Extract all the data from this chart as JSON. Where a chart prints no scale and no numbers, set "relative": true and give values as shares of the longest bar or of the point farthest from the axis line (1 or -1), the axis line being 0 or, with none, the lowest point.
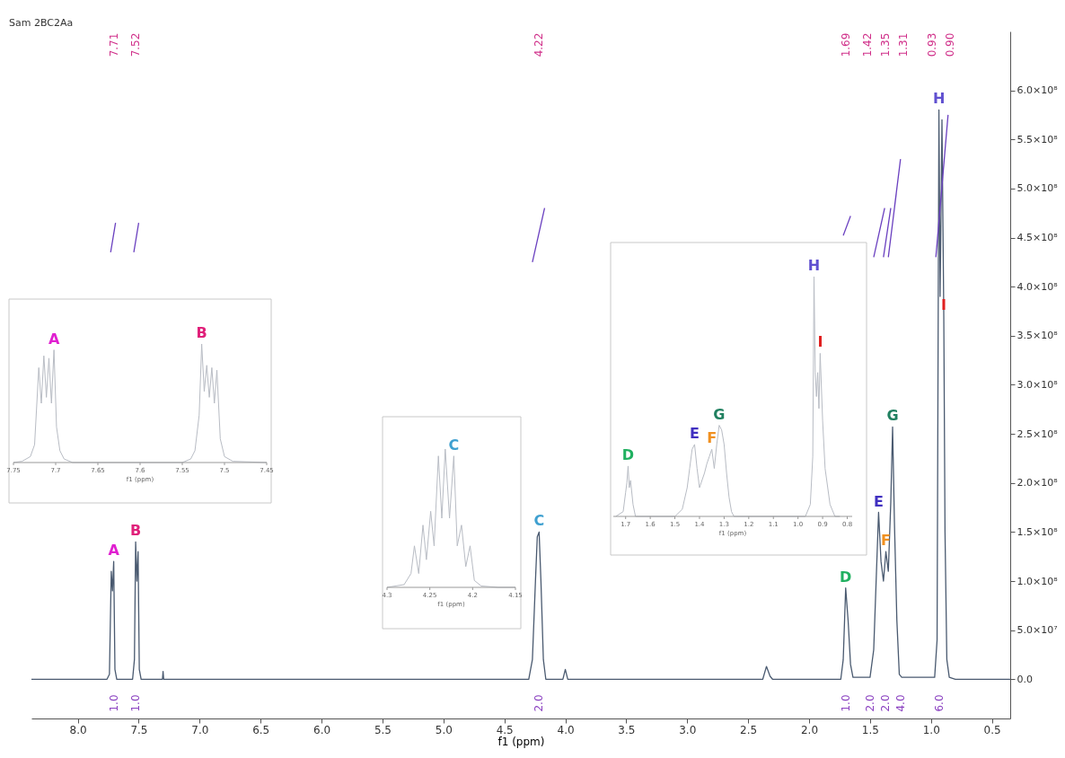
{
  "chart_data": [
    {
      "type": "line",
      "title": "Sam 2BC2Aa",
      "xlabel": "f1 (ppm)",
      "xlim": [
        8.38,
        0.35
      ],
      "xticks": [
        {
          "value": 8,
          "label": "8.0"
        },
        7.5,
        {
          "value": 7,
          "label": "7.0"
        },
        6.5,
        {
          "value": 6,
          "label": "6.0"
        },
        5.5,
        {
          "value": 5,
          "label": "5.0"
        },
        4.5,
        {
          "value": 4,
          "label": "4.0"
        },
        3.5,
        {
          "value": 3,
          "label": "3.0"
        },
        2.5,
        {
          "value": 2,
          "label": "2.0"
        },
        1.5,
        {
          "value": 1,
          "label": "1.0"
        },
        0.5
      ],
      "ylim": [
        -40000000,
        660000000
      ],
      "yticks": [
        {
          "value": 0,
          "label": "0.0"
        },
        {
          "value": 50000000,
          "label": "5.0×10⁷"
        },
        {
          "value": 100000000,
          "label": "1.0×10⁸"
        },
        {
          "value": 150000000,
          "label": "1.5×10⁸"
        },
        {
          "value": 200000000,
          "label": "2.0×10⁸"
        },
        {
          "value": 250000000,
          "label": "2.5×10⁸"
        },
        {
          "value": 300000000,
          "label": "3.0×10⁸"
        },
        {
          "value": 350000000,
          "label": "3.5×10⁸"
        },
        {
          "value": 400000000,
          "label": "4.0×10⁸"
        },
        {
          "value": 450000000,
          "label": "4.5×10⁸"
        },
        {
          "value": 500000000,
          "label": "5.0×10⁸"
        },
        {
          "value": 550000000,
          "label": "5.5×10⁸"
        },
        {
          "value": 600000000,
          "label": "6.0×10⁸"
        }
      ],
      "grid": false,
      "marker": "none",
      "line_style": "solid",
      "series": [
        {
          "color": "#4a5a70",
          "x": [
            8.38,
            7.76,
            7.74,
            7.725,
            7.715,
            7.705,
            7.695,
            7.68,
            7.55,
            7.535,
            7.525,
            7.515,
            7.505,
            7.495,
            7.48,
            7.305,
            7.3,
            7.295,
            4.3,
            4.27,
            4.245,
            4.23,
            4.215,
            4.2,
            4.18,
            4.16,
            4.02,
            4.0,
            3.98,
            2.38,
            2.35,
            2.32,
            2.3,
            1.74,
            1.72,
            1.7,
            1.68,
            1.66,
            1.64,
            1.5,
            1.47,
            1.45,
            1.43,
            1.41,
            1.39,
            1.37,
            1.35,
            1.33,
            1.315,
            1.3,
            1.28,
            1.26,
            1.24,
            0.97,
            0.95,
            0.935,
            0.925,
            0.91,
            0.895,
            0.885,
            0.87,
            0.85,
            0.8,
            0.35
          ],
          "values": [
            0,
            0,
            5000000,
            110000000,
            90000000,
            120000000,
            10000000,
            0,
            0,
            20000000,
            140000000,
            100000000,
            130000000,
            10000000,
            0,
            0,
            8000000,
            0,
            0,
            20000000,
            100000000,
            145000000,
            150000000,
            100000000,
            20000000,
            0,
            0,
            10000000,
            0,
            0,
            13000000,
            3000000,
            0,
            0,
            20000000,
            93000000,
            60000000,
            15000000,
            2000000,
            2000000,
            30000000,
            100000000,
            170000000,
            120000000,
            100000000,
            130000000,
            110000000,
            180000000,
            257000000,
            160000000,
            60000000,
            5000000,
            2000000,
            2000000,
            40000000,
            580000000,
            390000000,
            570000000,
            370000000,
            150000000,
            20000000,
            2000000,
            0,
            0
          ]
        },
        {
          "color": "#6a40c0",
          "x": [
            7.73,
            7.69
          ],
          "values": [
            435000000,
            465000000
          ]
        },
        {
          "color": "#6a40c0",
          "x": [
            7.54,
            7.5
          ],
          "values": [
            435000000,
            465000000
          ]
        },
        {
          "color": "#6a40c0",
          "x": [
            4.27,
            4.17
          ],
          "values": [
            425000000,
            480000000
          ]
        },
        {
          "color": "#6a40c0",
          "x": [
            1.72,
            1.66
          ],
          "values": [
            452000000,
            472000000
          ]
        },
        {
          "color": "#6a40c0",
          "x": [
            1.47,
            1.38
          ],
          "values": [
            430000000,
            480000000
          ]
        },
        {
          "color": "#6a40c0",
          "x": [
            1.39,
            1.33
          ],
          "values": [
            430000000,
            480000000
          ]
        },
        {
          "color": "#6a40c0",
          "x": [
            1.35,
            1.25
          ],
          "values": [
            430000000,
            530000000
          ]
        },
        {
          "color": "#6a40c0",
          "x": [
            0.96,
            0.86
          ],
          "values": [
            430000000,
            575000000
          ]
        }
      ],
      "annotations": [
        "7.71",
        "7.52",
        "4.22",
        "1.69",
        "1.42",
        "1.35",
        "1.31",
        "0.93",
        "0.90",
        {
          "text": "A",
          "x": 7.705,
          "y": 120000000
        },
        {
          "text": "B",
          "x": 7.525,
          "y": 140000000
        },
        {
          "text": "C",
          "x": 4.215,
          "y": 150000000
        },
        {
          "text": "D",
          "x": 1.7,
          "y": 93000000
        },
        {
          "text": "E",
          "x": 1.43,
          "y": 170000000
        },
        {
          "text": "F",
          "x": 1.37,
          "y": 130000000
        },
        {
          "text": "G",
          "x": 1.315,
          "y": 257000000
        },
        {
          "text": "H",
          "x": 0.935,
          "y": 580000000
        },
        {
          "text": "I",
          "x": 0.895,
          "y": 370000000
        },
        "1.0",
        "1.0",
        "2.0",
        "1.0",
        "2.0",
        "2.0",
        "4.0",
        "6.0"
      ]
    },
    {
      "type": "line",
      "relative": true,
      "tick_labels": "x",
      "xlabel": "f1 (ppm)",
      "xlim": [
        7.75,
        7.45
      ],
      "xticks": [
        7.75,
        7.7,
        7.65,
        7.6,
        7.55,
        7.5,
        7.45
      ],
      "color": "#b8bcc4",
      "x": [
        7.75,
        7.74,
        7.73,
        7.725,
        7.72,
        7.717,
        7.714,
        7.711,
        7.708,
        7.705,
        7.702,
        7.699,
        7.695,
        7.69,
        7.68,
        7.55,
        7.54,
        7.535,
        7.53,
        7.527,
        7.524,
        7.521,
        7.518,
        7.515,
        7.512,
        7.509,
        7.505,
        7.5,
        7.49,
        7.45
      ],
      "values": [
        0,
        0.01,
        0.05,
        0.15,
        0.8,
        0.5,
        0.9,
        0.55,
        0.88,
        0.5,
        0.95,
        0.3,
        0.1,
        0.03,
        0,
        0,
        0.03,
        0.1,
        0.4,
        1,
        0.6,
        0.82,
        0.55,
        0.8,
        0.5,
        0.78,
        0.2,
        0.05,
        0.01,
        0
      ],
      "annotations": [
        {
          "text": "A",
          "x": 7.702,
          "y": 0.95
        },
        {
          "text": "B",
          "x": 7.527,
          "y": 1
        }
      ]
    },
    {
      "type": "line",
      "relative": true,
      "tick_labels": "x",
      "xlabel": "f1 (ppm)",
      "xlim": [
        4.3,
        4.15
      ],
      "xticks": [
        4.3,
        4.25,
        4.2,
        4.15
      ],
      "color": "#b8bcc4",
      "x": [
        4.3,
        4.28,
        4.272,
        4.268,
        4.263,
        4.258,
        4.254,
        4.249,
        4.245,
        4.24,
        4.236,
        4.232,
        4.227,
        4.222,
        4.218,
        4.213,
        4.208,
        4.203,
        4.198,
        4.19,
        4.17,
        4.15
      ],
      "values": [
        0,
        0.02,
        0.1,
        0.3,
        0.1,
        0.45,
        0.2,
        0.55,
        0.3,
        0.95,
        0.5,
        1,
        0.5,
        0.95,
        0.3,
        0.45,
        0.15,
        0.3,
        0.05,
        0.01,
        0,
        0
      ],
      "annotations": [
        {
          "text": "C",
          "x": 4.222,
          "y": 0.95
        }
      ]
    },
    {
      "type": "line",
      "relative": true,
      "tick_labels": "x",
      "xlabel": "f1 (ppm)",
      "xlim": [
        1.75,
        0.78
      ],
      "xticks": [
        1.7,
        1.6,
        1.5,
        1.4,
        1.3,
        1.2,
        1.1,
        {
          "value": 1,
          "label": "1.0"
        },
        0.9,
        0.8
      ],
      "color": "#b8bcc4",
      "x": [
        1.74,
        1.71,
        1.7,
        1.695,
        1.69,
        1.685,
        1.68,
        1.67,
        1.66,
        1.5,
        1.47,
        1.45,
        1.44,
        1.43,
        1.42,
        1.41,
        1.4,
        1.39,
        1.38,
        1.37,
        1.36,
        1.35,
        1.34,
        1.33,
        1.32,
        1.31,
        1.3,
        1.29,
        1.28,
        1.27,
        1.26,
        1.2,
        0.97,
        0.95,
        0.94,
        0.935,
        0.93,
        0.925,
        0.92,
        0.915,
        0.91,
        0.9,
        0.89,
        0.87,
        0.85,
        0.83
      ],
      "values": [
        0,
        0.02,
        0.1,
        0.14,
        0.21,
        0.12,
        0.15,
        0.05,
        0,
        0,
        0.03,
        0.12,
        0.2,
        0.28,
        0.3,
        0.2,
        0.12,
        0.15,
        0.18,
        0.22,
        0.25,
        0.28,
        0.2,
        0.3,
        0.38,
        0.36,
        0.3,
        0.18,
        0.08,
        0.02,
        0,
        0,
        0,
        0.05,
        0.25,
        1,
        0.6,
        0.5,
        0.6,
        0.45,
        0.68,
        0.4,
        0.2,
        0.05,
        0,
        0
      ],
      "annotations": [
        {
          "text": "D",
          "x": 1.69,
          "y": 0.21
        },
        {
          "text": "E",
          "x": 1.42,
          "y": 0.3
        },
        {
          "text": "F",
          "x": 1.35,
          "y": 0.28
        },
        {
          "text": "G",
          "x": 1.32,
          "y": 0.38
        },
        {
          "text": "H",
          "x": 0.935,
          "y": 1
        },
        {
          "text": "I",
          "x": 0.91,
          "y": 0.68
        }
      ]
    }
  ]
}
